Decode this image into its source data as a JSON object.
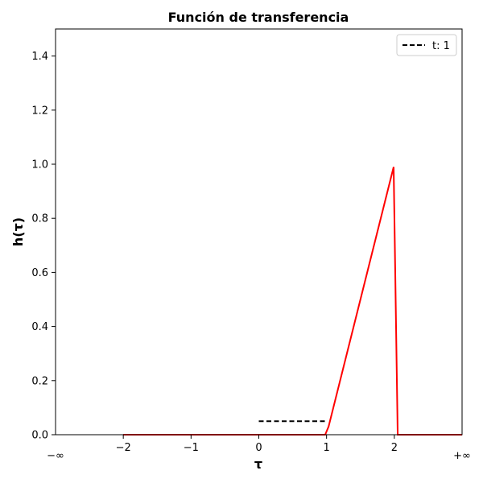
{
  "chart_data": {
    "type": "line",
    "title": "Función de transferencia",
    "xlabel": "τ",
    "ylabel": "h(τ)",
    "xlim": [
      -3,
      3
    ],
    "ylim": [
      0,
      1.5
    ],
    "x_ticks": [
      {
        "value": -2,
        "label": "−2"
      },
      {
        "value": -1,
        "label": "−1"
      },
      {
        "value": 0,
        "label": "0"
      },
      {
        "value": 1,
        "label": "1"
      },
      {
        "value": 2,
        "label": "2"
      }
    ],
    "x_edge_labels": {
      "left": "−∞",
      "right": "+∞"
    },
    "y_ticks": [
      {
        "value": 0.0,
        "label": "0.0"
      },
      {
        "value": 0.2,
        "label": "0.2"
      },
      {
        "value": 0.4,
        "label": "0.4"
      },
      {
        "value": 0.6,
        "label": "0.6"
      },
      {
        "value": 0.8,
        "label": "0.8"
      },
      {
        "value": 1.0,
        "label": "1.0"
      },
      {
        "value": 1.2,
        "label": "1.2"
      },
      {
        "value": 1.4,
        "label": "1.4"
      }
    ],
    "grid": false,
    "legend_position": "top-right",
    "series": [
      {
        "kind": "line",
        "color": "#ff0000",
        "style": "solid",
        "x": [
          -2,
          0.98,
          1.03,
          1.99,
          2.05,
          3
        ],
        "y": [
          0,
          0,
          0.03,
          0.99,
          0,
          0
        ]
      },
      {
        "name": "t: 1",
        "kind": "line",
        "color": "#000000",
        "style": "dashed",
        "x": [
          0,
          1
        ],
        "y": [
          0.05,
          0.05
        ]
      }
    ]
  }
}
